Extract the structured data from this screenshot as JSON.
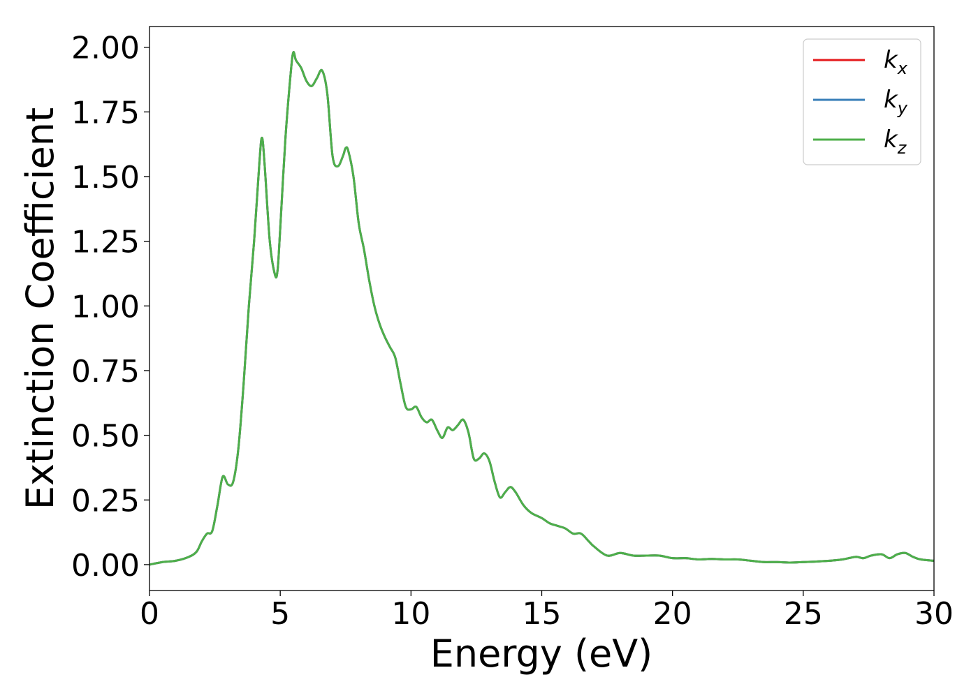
{
  "chart_data": {
    "type": "line",
    "xlabel": "Energy (eV)",
    "ylabel": "Extinction Coefficient",
    "xlim": [
      0,
      30
    ],
    "ylim": [
      -0.1,
      2.08
    ],
    "x_ticks": [
      0,
      5,
      10,
      15,
      20,
      25,
      30
    ],
    "x_tick_labels": [
      "0",
      "5",
      "10",
      "15",
      "20",
      "25",
      "30"
    ],
    "y_ticks": [
      0,
      0.25,
      0.5,
      0.75,
      1.0,
      1.25,
      1.5,
      1.75,
      2.0
    ],
    "y_tick_labels": [
      "0.00",
      "0.25",
      "0.50",
      "0.75",
      "1.00",
      "1.25",
      "1.50",
      "1.75",
      "2.00"
    ],
    "grid": false,
    "legend_position": "top-right",
    "x": [
      0,
      0.5,
      1.0,
      1.5,
      1.8,
      2.0,
      2.2,
      2.4,
      2.6,
      2.8,
      3.0,
      3.2,
      3.4,
      3.6,
      3.8,
      4.0,
      4.2,
      4.3,
      4.4,
      4.6,
      4.8,
      4.9,
      5.0,
      5.2,
      5.4,
      5.5,
      5.6,
      5.8,
      6.0,
      6.2,
      6.4,
      6.6,
      6.8,
      7.0,
      7.2,
      7.4,
      7.5,
      7.6,
      7.8,
      8.0,
      8.2,
      8.4,
      8.6,
      8.8,
      9.0,
      9.2,
      9.4,
      9.6,
      9.8,
      10.0,
      10.2,
      10.4,
      10.6,
      10.8,
      11.0,
      11.2,
      11.4,
      11.6,
      11.8,
      12.0,
      12.2,
      12.4,
      12.6,
      12.8,
      13.0,
      13.2,
      13.4,
      13.6,
      13.8,
      14.0,
      14.3,
      14.6,
      15.0,
      15.3,
      15.6,
      15.9,
      16.2,
      16.5,
      16.8,
      17.0,
      17.5,
      18.0,
      18.5,
      19.0,
      19.5,
      20.0,
      20.5,
      21.0,
      21.5,
      22.0,
      22.5,
      23.0,
      23.5,
      24.0,
      24.5,
      25.0,
      25.5,
      26.0,
      26.5,
      27.0,
      27.3,
      27.6,
      28.0,
      28.3,
      28.6,
      28.9,
      29.2,
      29.5,
      30.0
    ],
    "series": [
      {
        "name": "k_x",
        "color": "#e41a1c",
        "y": [
          0.0,
          0.01,
          0.015,
          0.03,
          0.05,
          0.09,
          0.12,
          0.13,
          0.23,
          0.34,
          0.31,
          0.32,
          0.45,
          0.7,
          1.0,
          1.25,
          1.55,
          1.65,
          1.55,
          1.25,
          1.12,
          1.14,
          1.3,
          1.65,
          1.9,
          1.98,
          1.95,
          1.92,
          1.87,
          1.85,
          1.88,
          1.91,
          1.82,
          1.58,
          1.54,
          1.58,
          1.61,
          1.6,
          1.5,
          1.32,
          1.22,
          1.1,
          1.0,
          0.93,
          0.88,
          0.84,
          0.8,
          0.7,
          0.61,
          0.6,
          0.61,
          0.57,
          0.55,
          0.56,
          0.52,
          0.49,
          0.53,
          0.52,
          0.54,
          0.56,
          0.51,
          0.41,
          0.41,
          0.43,
          0.4,
          0.32,
          0.26,
          0.28,
          0.3,
          0.28,
          0.23,
          0.2,
          0.18,
          0.16,
          0.15,
          0.14,
          0.12,
          0.12,
          0.09,
          0.07,
          0.035,
          0.045,
          0.035,
          0.035,
          0.035,
          0.025,
          0.025,
          0.02,
          0.022,
          0.02,
          0.02,
          0.015,
          0.01,
          0.01,
          0.008,
          0.01,
          0.012,
          0.015,
          0.02,
          0.03,
          0.025,
          0.035,
          0.04,
          0.025,
          0.04,
          0.045,
          0.03,
          0.02,
          0.015
        ]
      },
      {
        "name": "k_y",
        "color": "#377eb8",
        "y": [
          0.0,
          0.01,
          0.015,
          0.03,
          0.05,
          0.09,
          0.12,
          0.13,
          0.23,
          0.34,
          0.31,
          0.32,
          0.45,
          0.7,
          1.0,
          1.25,
          1.55,
          1.65,
          1.55,
          1.25,
          1.12,
          1.14,
          1.3,
          1.65,
          1.9,
          1.98,
          1.95,
          1.92,
          1.87,
          1.85,
          1.88,
          1.91,
          1.82,
          1.58,
          1.54,
          1.58,
          1.61,
          1.6,
          1.5,
          1.32,
          1.22,
          1.1,
          1.0,
          0.93,
          0.88,
          0.84,
          0.8,
          0.7,
          0.61,
          0.6,
          0.61,
          0.57,
          0.55,
          0.56,
          0.52,
          0.49,
          0.53,
          0.52,
          0.54,
          0.56,
          0.51,
          0.41,
          0.41,
          0.43,
          0.4,
          0.32,
          0.26,
          0.28,
          0.3,
          0.28,
          0.23,
          0.2,
          0.18,
          0.16,
          0.15,
          0.14,
          0.12,
          0.12,
          0.09,
          0.07,
          0.035,
          0.045,
          0.035,
          0.035,
          0.035,
          0.025,
          0.025,
          0.02,
          0.022,
          0.02,
          0.02,
          0.015,
          0.01,
          0.01,
          0.008,
          0.01,
          0.012,
          0.015,
          0.02,
          0.03,
          0.025,
          0.035,
          0.04,
          0.025,
          0.04,
          0.045,
          0.03,
          0.02,
          0.015
        ]
      },
      {
        "name": "k_z",
        "color": "#4daf4a",
        "y": [
          0.0,
          0.01,
          0.015,
          0.03,
          0.05,
          0.09,
          0.12,
          0.13,
          0.23,
          0.34,
          0.31,
          0.32,
          0.45,
          0.7,
          1.0,
          1.25,
          1.55,
          1.65,
          1.55,
          1.25,
          1.12,
          1.14,
          1.3,
          1.65,
          1.9,
          1.98,
          1.95,
          1.92,
          1.87,
          1.85,
          1.88,
          1.91,
          1.82,
          1.58,
          1.54,
          1.58,
          1.61,
          1.6,
          1.5,
          1.32,
          1.22,
          1.1,
          1.0,
          0.93,
          0.88,
          0.84,
          0.8,
          0.7,
          0.61,
          0.6,
          0.61,
          0.57,
          0.55,
          0.56,
          0.52,
          0.49,
          0.53,
          0.52,
          0.54,
          0.56,
          0.51,
          0.41,
          0.41,
          0.43,
          0.4,
          0.32,
          0.26,
          0.28,
          0.3,
          0.28,
          0.23,
          0.2,
          0.18,
          0.16,
          0.15,
          0.14,
          0.12,
          0.12,
          0.09,
          0.07,
          0.035,
          0.045,
          0.035,
          0.035,
          0.035,
          0.025,
          0.025,
          0.02,
          0.022,
          0.02,
          0.02,
          0.015,
          0.01,
          0.01,
          0.008,
          0.01,
          0.012,
          0.015,
          0.02,
          0.03,
          0.025,
          0.035,
          0.04,
          0.025,
          0.04,
          0.045,
          0.03,
          0.02,
          0.015
        ]
      }
    ],
    "legend": [
      {
        "base": "k",
        "sub": "x",
        "color": "#e41a1c"
      },
      {
        "base": "k",
        "sub": "y",
        "color": "#377eb8"
      },
      {
        "base": "k",
        "sub": "z",
        "color": "#4daf4a"
      }
    ]
  }
}
